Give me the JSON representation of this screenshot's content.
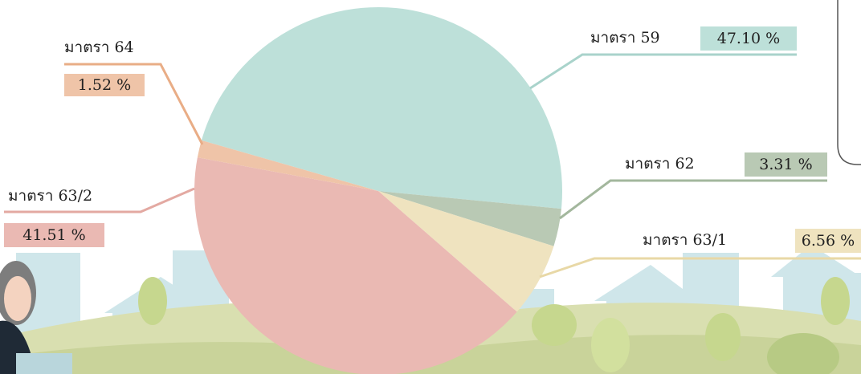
{
  "chart_data": {
    "type": "pie",
    "categories": [
      "มาตรา 59",
      "มาตรา 62",
      "มาตรา 63/1",
      "มาตรา 63/2",
      "มาตรา 64"
    ],
    "values": [
      47.1,
      3.31,
      6.56,
      41.51,
      1.52
    ],
    "value_labels": [
      "47.10 %",
      "3.31 %",
      "6.56 %",
      "41.51 %",
      "1.52 %"
    ],
    "colors": [
      "#bde0d9",
      "#b9c9b4",
      "#efe3bf",
      "#eab9b3",
      "#efc4a8"
    ]
  }
}
